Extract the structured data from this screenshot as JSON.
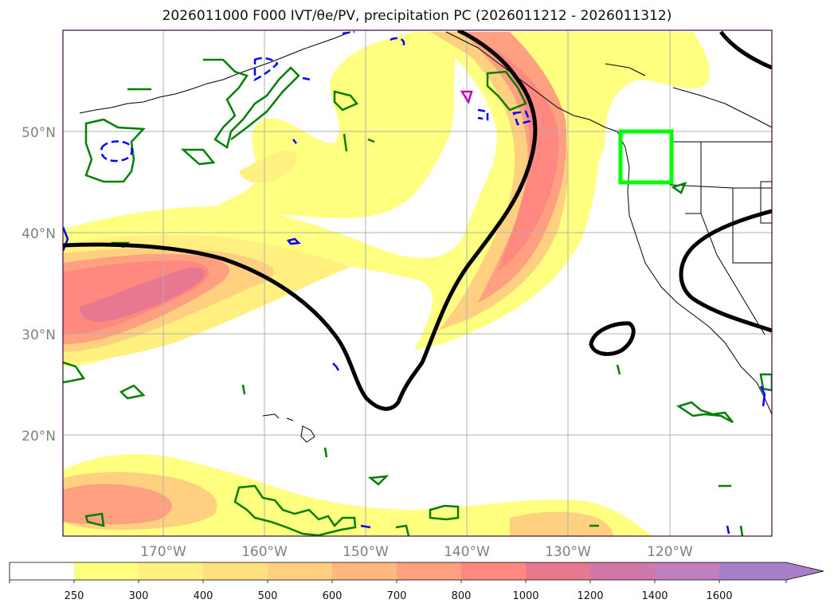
{
  "title": "2026011000 F000 IVT/θe/PV, precipitation PC (2026011212 - 2026011312)",
  "lat_labels": [
    "50°N",
    "40°N",
    "30°N",
    "20°N"
  ],
  "lon_labels": [
    "170°W",
    "160°W",
    "150°W",
    "140°W",
    "130°W",
    "120°W"
  ],
  "colorbar": {
    "ticks": [
      "250",
      "300",
      "400",
      "500",
      "600",
      "700",
      "800",
      "1000",
      "1200",
      "1400",
      "1600"
    ],
    "colors": [
      "#ffffff",
      "#ffff80",
      "#fff080",
      "#ffe080",
      "#ffd080",
      "#ffb880",
      "#ffa080",
      "#ff8880",
      "#e87890",
      "#d078a8",
      "#c080c0",
      "#a880c8"
    ]
  },
  "colors": {
    "ivt_low": "#ffff80",
    "ivt_mid": "#ffd080",
    "ivt_high": "#ff8880",
    "ivt_max": "#e87890",
    "theta_e": "#000000",
    "pv_positive": "#007f00",
    "pv_negative": "#0000ff",
    "pv_other": "#bf00bf",
    "box": "#00ff00",
    "grid": "#b0b0b0",
    "frame": "#3a0a3a"
  }
}
